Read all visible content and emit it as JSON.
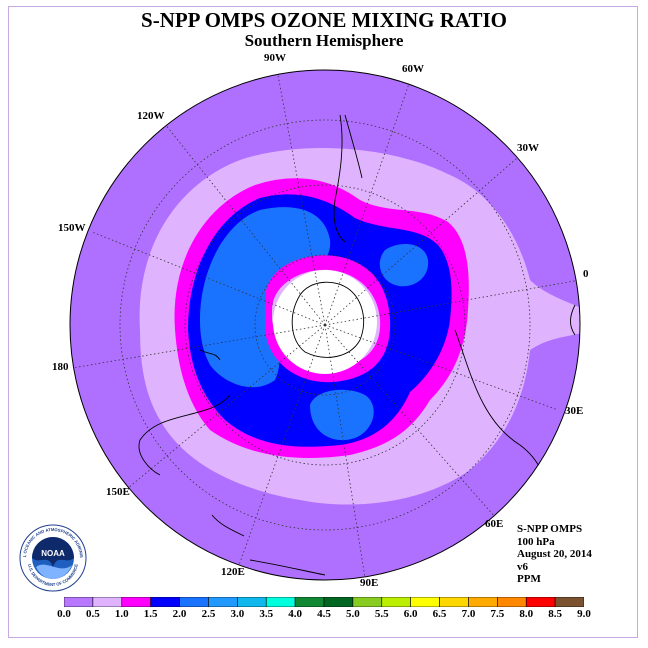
{
  "title": "S-NPP OMPS OZONE MIXING RATIO",
  "subtitle": "Southern Hemisphere",
  "longitude_labels": {
    "w90": "90W",
    "w60": "60W",
    "w30": "30W",
    "e0": "0",
    "e30": "30E",
    "e60": "60E",
    "e90": "90E",
    "e120": "120E",
    "e150": "150E",
    "d180": "180",
    "w150": "150W",
    "w120": "120W"
  },
  "info": {
    "instrument": "S-NPP OMPS",
    "level": "100 hPa",
    "date": "August 20, 2014",
    "version": "v6",
    "units": "PPM"
  },
  "logo": {
    "text": "NOAA",
    "ring_text": "NATIONAL OCEANIC AND ATMOSPHERIC ADMINISTRATION",
    "ring_text_bottom": "U.S. DEPARTMENT OF COMMERCE"
  },
  "colorbar": {
    "ticks": [
      "0.0",
      "0.5",
      "1.0",
      "1.5",
      "2.0",
      "2.5",
      "3.0",
      "3.5",
      "4.0",
      "4.5",
      "5.0",
      "5.5",
      "6.0",
      "6.5",
      "7.0",
      "7.5",
      "8.0",
      "8.5",
      "9.0"
    ],
    "colors": [
      "#b777ff",
      "#e0b3ff",
      "#ff00ff",
      "#0000ff",
      "#1a73ff",
      "#2299ff",
      "#11b8ee",
      "#00ffdd",
      "#118833",
      "#006622",
      "#88cc22",
      "#bbee00",
      "#ffff00",
      "#ffd700",
      "#ffaa00",
      "#ff8800",
      "#ff0000",
      "#7a5230"
    ]
  },
  "map": {
    "background_color": "#b070ff",
    "colors": {
      "c0": "#b070ff",
      "c05": "#e0b3ff",
      "c10": "#ff00ff",
      "c15": "#0000ff",
      "c20": "#1a73ff",
      "pole": "#ffffff"
    }
  }
}
